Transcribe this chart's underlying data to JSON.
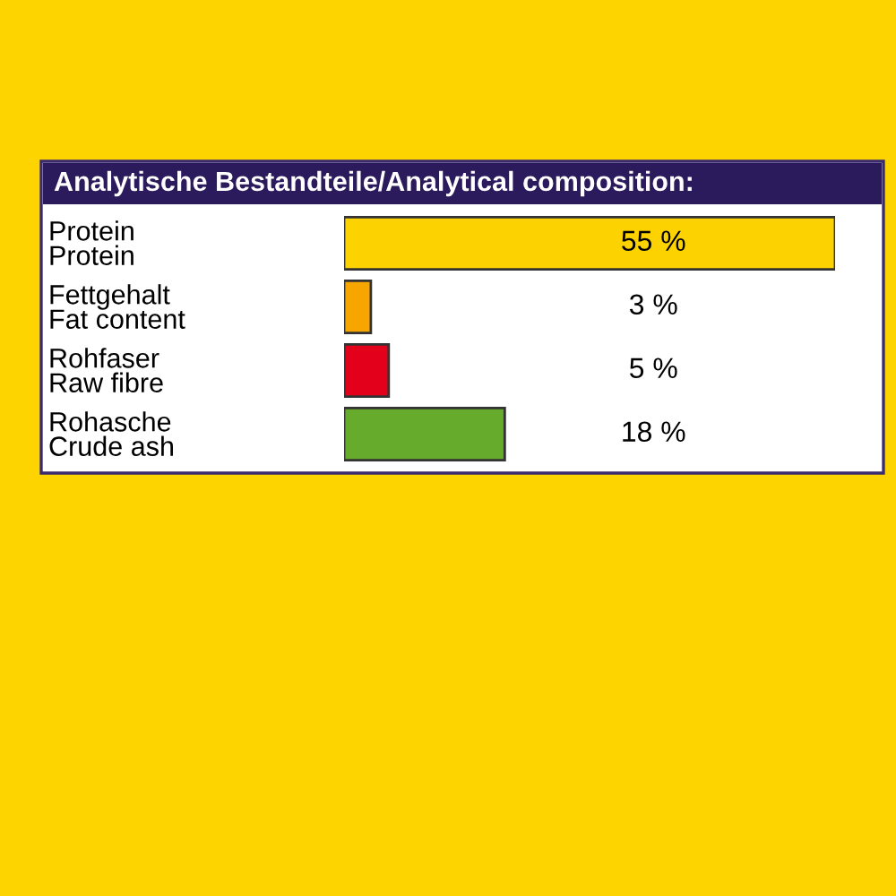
{
  "chart_data": {
    "type": "bar",
    "orientation": "horizontal",
    "title": "Analytische Bestandteile/Analytical composition:",
    "categories": [
      "Protein\nProtein",
      "Fettgehalt\nFat content",
      "Rohfaser\nRaw fibre",
      "Rohasche\nCrude ash"
    ],
    "values": [
      55,
      3,
      5,
      18
    ],
    "colors": [
      "#fcd200",
      "#f7a600",
      "#e2001a",
      "#67ab2d"
    ],
    "value_labels": [
      "55 %",
      "3 %",
      "5 %",
      "18 %"
    ],
    "grid": false,
    "legend": false
  }
}
